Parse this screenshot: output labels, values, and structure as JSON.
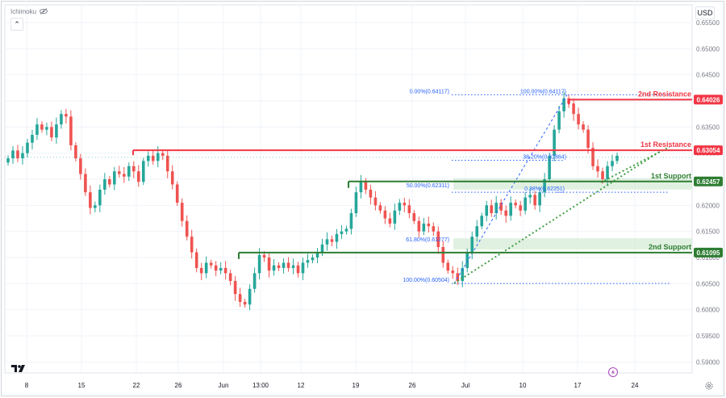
{
  "header": {
    "indicator_label": "Ichimoku",
    "eye_icon": "eye-off-icon",
    "collapse_icon": "chevron-up-icon",
    "currency": "USD",
    "logo_icon": "tradingview-logo-icon",
    "settings_icon": "gear-icon",
    "bolt_icon": "lightning-icon"
  },
  "colors": {
    "up": "#26a69a",
    "down": "#ef5350",
    "resistance": "#f23645",
    "support": "#2e7d32",
    "fib": "#2962ff",
    "trend": "#43a047",
    "grid": "#f0f3fa",
    "text": "#131722",
    "muted": "#787b86"
  },
  "chart_data": {
    "type": "candlestick",
    "title": "",
    "ylim": [
      0.588,
      0.66
    ],
    "y_ticks": [
      "0.65500",
      "0.65000",
      "0.64500",
      "0.64000",
      "0.63500",
      "0.63000",
      "0.62500",
      "0.62000",
      "0.61500",
      "0.61000",
      "0.60500",
      "0.60000",
      "0.59500",
      "0.59000"
    ],
    "x_ticks": [
      "8",
      "15",
      "22",
      "26",
      "Jun",
      "13:00",
      "12",
      "19",
      "26",
      "Jul",
      "10",
      "17",
      "24"
    ],
    "price_labels": [
      {
        "text": "0.64026",
        "value": 0.64026,
        "kind": "resistance"
      },
      {
        "text": "0.63054",
        "value": 0.63054,
        "kind": "resistance"
      },
      {
        "text": "0.62457",
        "value": 0.62457,
        "kind": "support"
      },
      {
        "text": "0.61095",
        "value": 0.61095,
        "kind": "support"
      }
    ],
    "annotations": [
      {
        "text": "2nd Resistance",
        "value": 0.64026,
        "kind": "resistance"
      },
      {
        "text": "1st Resistance",
        "value": 0.63054,
        "kind": "resistance"
      },
      {
        "text": "1st Support",
        "value": 0.62457,
        "kind": "support"
      },
      {
        "text": "2nd Support",
        "value": 0.61095,
        "kind": "support"
      }
    ],
    "fib_labels": [
      {
        "text": "0.00%(0.64117)",
        "value": 0.64117
      },
      {
        "text": "100.00%(0.64117)",
        "value": 0.64117
      },
      {
        "text": "38.20%(0.62864)",
        "value": 0.62864
      },
      {
        "text": "50.00%(0.62311)",
        "value": 0.62311
      },
      {
        "text": "0.38%(0.62251)",
        "value": 0.62251
      },
      {
        "text": "61.80%(0.61277)",
        "value": 0.61277
      },
      {
        "text": "100.00%(0.60504)",
        "value": 0.60504
      }
    ],
    "series": [
      {
        "name": "",
        "close": [
          0.629,
          0.6305,
          0.629,
          0.63,
          0.632,
          0.6335,
          0.6355,
          0.6345,
          0.635,
          0.633,
          0.6355,
          0.6375,
          0.637,
          0.6315,
          0.629,
          0.626,
          0.6225,
          0.6195,
          0.62,
          0.623,
          0.625,
          0.624,
          0.6265,
          0.626,
          0.6255,
          0.6275,
          0.6265,
          0.6245,
          0.6285,
          0.6295,
          0.6285,
          0.63,
          0.6295,
          0.6265,
          0.624,
          0.6205,
          0.617,
          0.614,
          0.611,
          0.608,
          0.607,
          0.609,
          0.6085,
          0.6075,
          0.608,
          0.607,
          0.6055,
          0.603,
          0.6015,
          0.601,
          0.604,
          0.607,
          0.6105,
          0.61,
          0.6075,
          0.6085,
          0.608,
          0.609,
          0.608,
          0.6085,
          0.607,
          0.609,
          0.6095,
          0.61,
          0.611,
          0.6125,
          0.6135,
          0.613,
          0.6145,
          0.615,
          0.6155,
          0.6185,
          0.6225,
          0.6245,
          0.623,
          0.6215,
          0.62,
          0.619,
          0.6175,
          0.6165,
          0.619,
          0.6205,
          0.62,
          0.6185,
          0.617,
          0.615,
          0.6165,
          0.616,
          0.615,
          0.612,
          0.609,
          0.6075,
          0.607,
          0.6055,
          0.608,
          0.611,
          0.614,
          0.616,
          0.618,
          0.62,
          0.6185,
          0.6205,
          0.619,
          0.618,
          0.6205,
          0.62,
          0.619,
          0.6215,
          0.622,
          0.62,
          0.6225,
          0.625,
          0.6295,
          0.6345,
          0.638,
          0.6405,
          0.6395,
          0.6375,
          0.6355,
          0.6345,
          0.631,
          0.6275,
          0.6265,
          0.625,
          0.6275,
          0.6285,
          0.6295
        ]
      }
    ]
  }
}
